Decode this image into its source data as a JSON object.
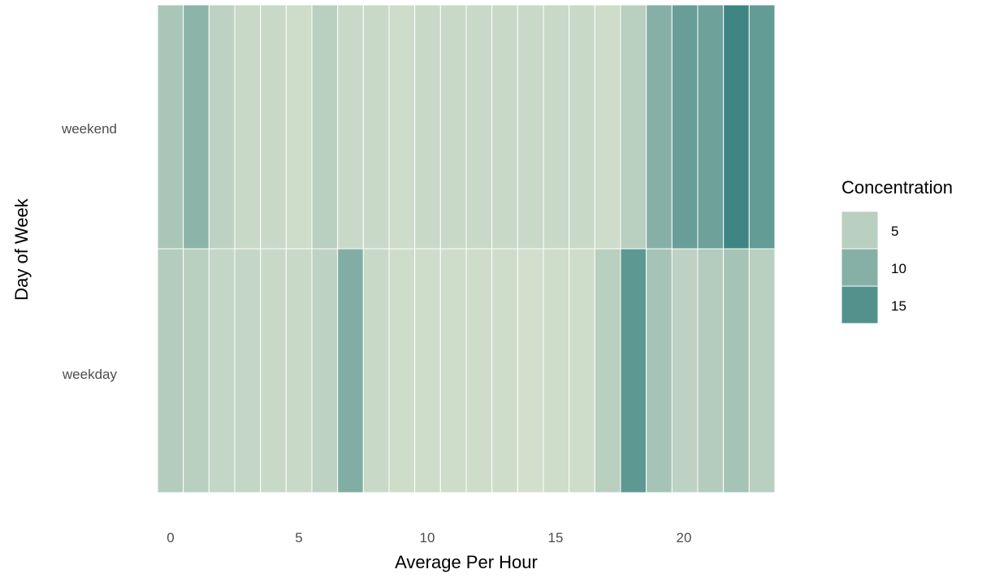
{
  "chart_data": {
    "type": "heatmap",
    "xlabel": "Average Per Hour",
    "ylabel": "Day of Week",
    "x": [
      0,
      1,
      2,
      3,
      4,
      5,
      6,
      7,
      8,
      9,
      10,
      11,
      12,
      13,
      14,
      15,
      16,
      17,
      18,
      19,
      20,
      21,
      22,
      23
    ],
    "x_ticks": [
      0,
      5,
      10,
      15,
      20
    ],
    "xlim": [
      -0.5,
      23.5
    ],
    "y_categories": [
      "weekend",
      "weekday"
    ],
    "values": {
      "weekend": [
        6.5,
        9.5,
        4.5,
        3.5,
        3.5,
        3.0,
        5.0,
        3.5,
        3.5,
        3.0,
        3.5,
        3.5,
        3.5,
        3.5,
        3.5,
        3.5,
        3.5,
        3.0,
        5.0,
        10.0,
        13.0,
        12.5,
        17.0,
        13.5
      ],
      "weekday": [
        5.5,
        5.0,
        4.0,
        4.0,
        3.5,
        3.5,
        4.5,
        10.5,
        3.5,
        3.0,
        3.0,
        3.0,
        3.0,
        3.0,
        2.5,
        3.0,
        3.0,
        5.0,
        14.0,
        7.0,
        4.5,
        5.5,
        7.0,
        5.0
      ]
    },
    "scale": {
      "min": 1.5,
      "max": 17.5,
      "low_color": "#dde5d2",
      "high_color": "#3a8280"
    },
    "legend": {
      "title": "Concentration",
      "position": "right",
      "entries": [
        {
          "label": "5",
          "value": 5
        },
        {
          "label": "10",
          "value": 10
        },
        {
          "label": "15",
          "value": 15
        }
      ]
    },
    "grid": false
  }
}
